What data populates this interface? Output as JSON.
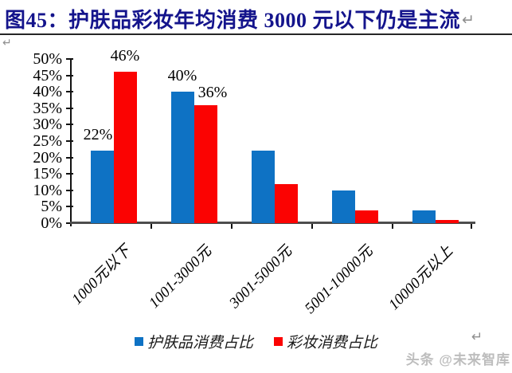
{
  "header": {
    "title": "图45：护肤品彩妆年均消费 3000 元以下仍是主流"
  },
  "marks": {
    "pilcrow": "↵"
  },
  "chart_data": {
    "type": "bar",
    "title": "护肤品彩妆年均消费3000元以下仍是主流",
    "categories": [
      "1000元以下",
      "1001-3000元",
      "3001-5000元",
      "5001-10000元",
      "10000元以上"
    ],
    "series": [
      {
        "key": "skincare",
        "name": "护肤品消费占比",
        "color": "#0E72C4",
        "values": [
          22,
          40,
          22,
          10,
          4
        ]
      },
      {
        "key": "makeup",
        "name": "彩妆消费占比",
        "color": "#FB0302",
        "values": [
          46,
          36,
          12,
          4,
          1
        ]
      }
    ],
    "data_labels": [
      {
        "series": 0,
        "category": 0,
        "text": "22%"
      },
      {
        "series": 1,
        "category": 0,
        "text": "46%"
      },
      {
        "series": 0,
        "category": 1,
        "text": "40%"
      },
      {
        "series": 1,
        "category": 1,
        "text": "36%"
      }
    ],
    "y_ticks": [
      "50%",
      "45%",
      "40%",
      "35%",
      "30%",
      "25%",
      "20%",
      "15%",
      "10%",
      "5%",
      "0%"
    ],
    "ylim": [
      0,
      50
    ],
    "y_step": 5,
    "grid": false,
    "legend_position": "bottom",
    "xlabel": "",
    "ylabel": ""
  },
  "watermark": {
    "text": "头条 @未来智库"
  }
}
